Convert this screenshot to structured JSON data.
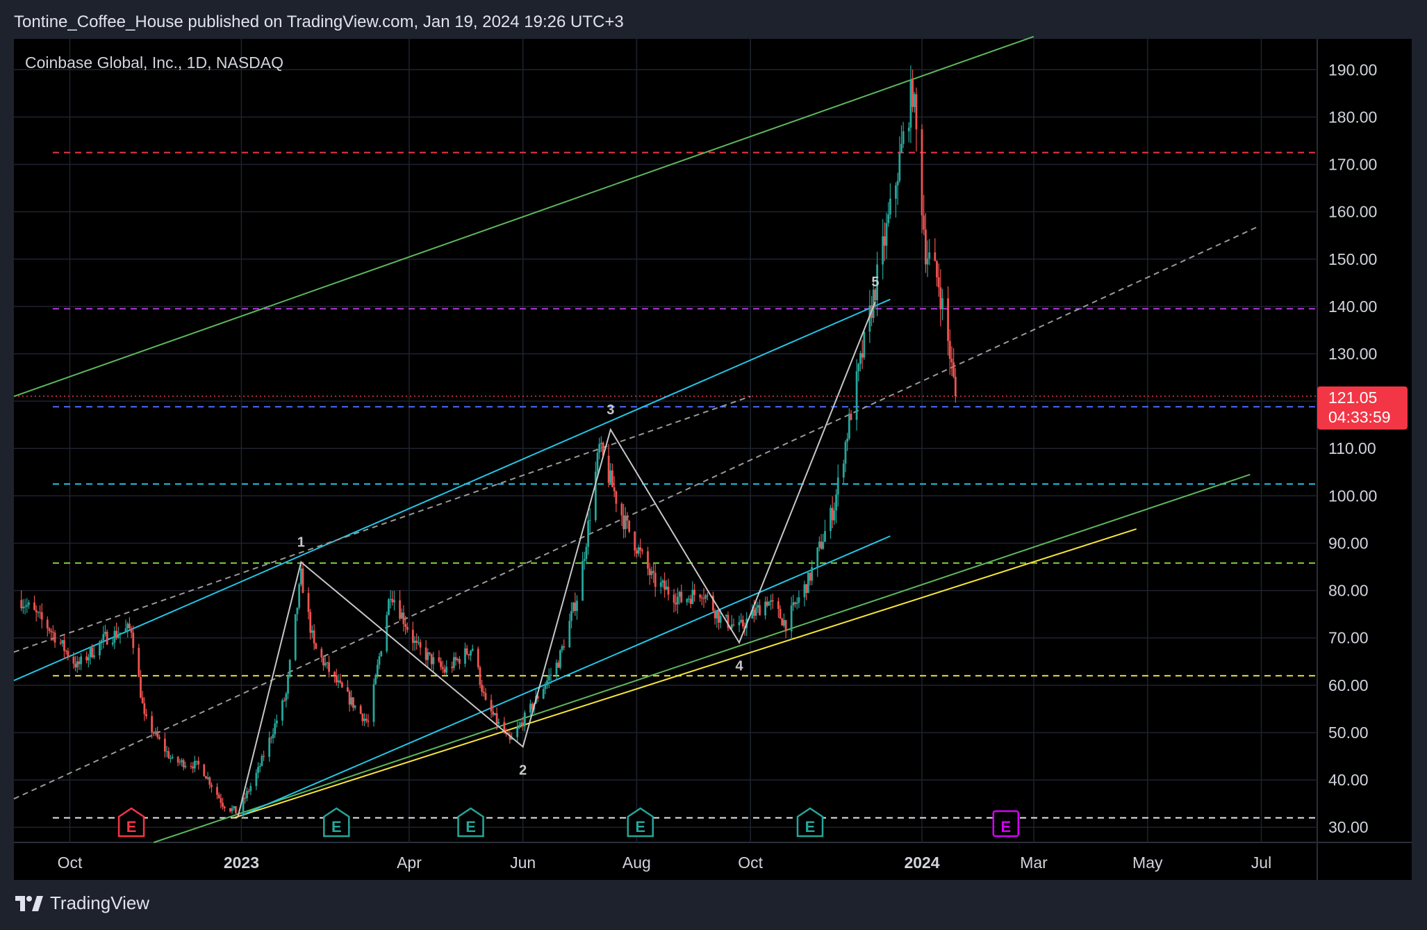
{
  "header": {
    "published": "Tontine_Coffee_House published on TradingView.com, Jan 19, 2024 19:26 UTC+3"
  },
  "brand": {
    "name": "TradingView"
  },
  "chart_data": {
    "type": "candlestick",
    "symbol_title": "Coinbase Global, Inc., 1D, NASDAQ",
    "y_ticks": [
      "190.00",
      "180.00",
      "170.00",
      "160.00",
      "150.00",
      "140.00",
      "130.00",
      "110.00",
      "100.00",
      "90.00",
      "80.00",
      "70.00",
      "60.00",
      "50.00",
      "40.00",
      "30.00"
    ],
    "y_tick_values": [
      190,
      180,
      170,
      160,
      150,
      140,
      130,
      110,
      100,
      90,
      80,
      70,
      60,
      50,
      40,
      30
    ],
    "ylim": [
      26.8,
      196.5
    ],
    "x_ticks": [
      {
        "label": "Oct",
        "date": "2022-10-01",
        "bold": false
      },
      {
        "label": "2023",
        "date": "2023-01-01",
        "bold": true
      },
      {
        "label": "Apr",
        "date": "2023-04-01",
        "bold": false
      },
      {
        "label": "Jun",
        "date": "2023-06-01",
        "bold": false
      },
      {
        "label": "Aug",
        "date": "2023-08-01",
        "bold": false
      },
      {
        "label": "Oct",
        "date": "2023-10-01",
        "bold": false
      },
      {
        "label": "2024",
        "date": "2024-01-01",
        "bold": true
      },
      {
        "label": "Mar",
        "date": "2024-03-01",
        "bold": false
      },
      {
        "label": "May",
        "date": "2024-05-01",
        "bold": false
      },
      {
        "label": "Jul",
        "date": "2024-07-01",
        "bold": false
      }
    ],
    "price_label": {
      "price": "121.05",
      "countdown": "04:33:59",
      "value": 121.05
    },
    "colors": {
      "up": "#26a69a",
      "down": "#ef5350",
      "background": "#000000",
      "grid": "#1f2330",
      "axis_text": "#d1d4dc",
      "price_tag": "#f23645"
    },
    "price_path": [
      [
        "2022-09-05",
        78
      ],
      [
        "2022-09-20",
        72
      ],
      [
        "2022-10-05",
        64
      ],
      [
        "2022-10-20",
        70
      ],
      [
        "2022-11-03",
        72
      ],
      [
        "2022-11-10",
        53
      ],
      [
        "2022-11-25",
        44
      ],
      [
        "2022-12-10",
        43
      ],
      [
        "2022-12-22",
        35
      ],
      [
        "2022-12-30",
        33
      ],
      [
        "2023-01-10",
        42
      ],
      [
        "2023-01-25",
        58
      ],
      [
        "2023-02-02",
        83
      ],
      [
        "2023-02-09",
        68
      ],
      [
        "2023-02-22",
        60
      ],
      [
        "2023-03-10",
        52
      ],
      [
        "2023-03-22",
        80
      ],
      [
        "2023-04-05",
        68
      ],
      [
        "2023-04-20",
        63
      ],
      [
        "2023-05-05",
        68
      ],
      [
        "2023-05-12",
        56
      ],
      [
        "2023-05-25",
        48
      ],
      [
        "2023-06-05",
        55
      ],
      [
        "2023-06-20",
        65
      ],
      [
        "2023-07-01",
        80
      ],
      [
        "2023-07-12",
        110
      ],
      [
        "2023-07-25",
        95
      ],
      [
        "2023-08-10",
        82
      ],
      [
        "2023-08-25",
        78
      ],
      [
        "2023-09-05",
        80
      ],
      [
        "2023-09-15",
        74
      ],
      [
        "2023-09-25",
        72
      ],
      [
        "2023-10-10",
        78
      ],
      [
        "2023-10-20",
        73
      ],
      [
        "2023-11-01",
        82
      ],
      [
        "2023-11-15",
        98
      ],
      [
        "2023-11-25",
        120
      ],
      [
        "2023-12-05",
        140
      ],
      [
        "2023-12-15",
        160
      ],
      [
        "2023-12-27",
        186
      ],
      [
        "2024-01-03",
        152
      ],
      [
        "2024-01-10",
        145
      ],
      [
        "2024-01-16",
        130
      ],
      [
        "2024-01-19",
        121.05
      ]
    ],
    "horizontal_levels": [
      {
        "value": 172.5,
        "color": "#f23645"
      },
      {
        "value": 139.5,
        "color": "#b33ad9"
      },
      {
        "value": 118.8,
        "color": "#4a6bff"
      },
      {
        "value": 102.5,
        "color": "#24c6e6"
      },
      {
        "value": 85.8,
        "color": "#7fcf3f"
      },
      {
        "value": 62.0,
        "color": "#f0e04a"
      },
      {
        "value": 32.0,
        "color": "#e8e8e8"
      }
    ],
    "lines": [
      {
        "name": "green-upper-channel",
        "color": "#5db85c",
        "dashed": false,
        "from": [
          "2022-09-01",
          121
        ],
        "to": [
          "2024-03-01",
          197
        ]
      },
      {
        "name": "green-lower-channel",
        "color": "#5db85c",
        "dashed": false,
        "from": [
          "2022-11-15",
          26.8
        ],
        "to": [
          "2024-06-25",
          104.5
        ]
      },
      {
        "name": "yellow-support",
        "color": "#f7e53b",
        "dashed": false,
        "from": [
          "2022-12-28",
          32
        ],
        "to": [
          "2024-04-25",
          93
        ]
      },
      {
        "name": "cyan-upper",
        "color": "#24c6e6",
        "dashed": false,
        "from": [
          "2022-09-01",
          61
        ],
        "to": [
          "2023-12-15",
          141.5
        ]
      },
      {
        "name": "cyan-lower",
        "color": "#24c6e6",
        "dashed": false,
        "from": [
          "2023-01-01",
          32.5
        ],
        "to": [
          "2023-12-15",
          91.5
        ]
      },
      {
        "name": "grey-dashed-mid",
        "color": "#9a9a9a",
        "dashed": true,
        "from": [
          "2022-09-01",
          36
        ],
        "to": [
          "2024-06-30",
          157
        ]
      },
      {
        "name": "grey-dashed-upper",
        "color": "#9a9a9a",
        "dashed": true,
        "from": [
          "2022-09-01",
          67
        ],
        "to": [
          "2023-10-01",
          121
        ]
      }
    ],
    "wave_points": [
      {
        "label": "",
        "date": "2022-12-30",
        "value": 32
      },
      {
        "label": "1",
        "date": "2023-02-02",
        "value": 86
      },
      {
        "label": "2",
        "date": "2023-06-01",
        "value": 47
      },
      {
        "label": "3",
        "date": "2023-07-18",
        "value": 114
      },
      {
        "label": "4",
        "date": "2023-09-25",
        "value": 69
      },
      {
        "label": "5",
        "date": "2023-12-07",
        "value": 141
      }
    ],
    "wave_label_positions": [
      {
        "label": "1",
        "above": true
      },
      {
        "label": "2",
        "above": false
      },
      {
        "label": "3",
        "above": true
      },
      {
        "label": "4",
        "above": false
      },
      {
        "label": "5",
        "above": true
      }
    ],
    "earnings_markers": [
      {
        "date": "2022-11-03",
        "label": "E",
        "color": "#f23645",
        "kind": "past"
      },
      {
        "date": "2023-02-21",
        "label": "E",
        "color": "#26a69a",
        "kind": "past"
      },
      {
        "date": "2023-05-04",
        "label": "E",
        "color": "#26a69a",
        "kind": "past"
      },
      {
        "date": "2023-08-03",
        "label": "E",
        "color": "#26a69a",
        "kind": "past"
      },
      {
        "date": "2023-11-02",
        "label": "E",
        "color": "#26a69a",
        "kind": "past"
      },
      {
        "date": "2024-02-15",
        "label": "E",
        "color": "#d500f9",
        "kind": "future"
      }
    ]
  }
}
